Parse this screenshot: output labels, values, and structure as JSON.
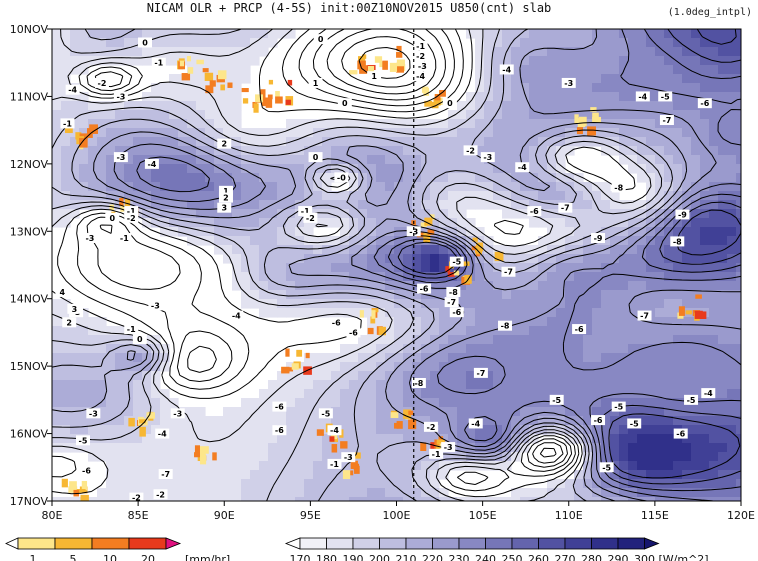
{
  "chart_data": {
    "type": "heatmap",
    "title": "NICAM  OLR + PRCP (4-5S) init:00Z10NOV2015 U850(cnt) slab",
    "note": "(1.0deg_intpl)",
    "x_ticks": [
      "80E",
      "85E",
      "90E",
      "95E",
      "100E",
      "105E",
      "110E",
      "115E",
      "120E"
    ],
    "x_range": [
      80,
      120
    ],
    "y_ticks": [
      "10NOV",
      "11NOV",
      "12NOV",
      "13NOV",
      "14NOV",
      "15NOV",
      "16NOV",
      "17NOV"
    ],
    "y_range": [
      10,
      17
    ],
    "marker_line_lon": 101,
    "prcp_colorbar": {
      "labels": [
        "1",
        "5",
        "10",
        "20"
      ],
      "unit": "[mm/hr]",
      "colors": [
        "#ffffff",
        "#fde68a",
        "#f7b733",
        "#f37d21",
        "#e83a1c",
        "#e0117f"
      ]
    },
    "olr_colorbar": {
      "labels": [
        "170",
        "180",
        "190",
        "200",
        "210",
        "220",
        "230",
        "240",
        "250",
        "260",
        "270",
        "280",
        "290",
        "300"
      ],
      "unit": "[W/m^2]",
      "colors": [
        "#ffffff",
        "#f1f1f7",
        "#e2e2f0",
        "#d0d0e8",
        "#bebee0",
        "#acacd7",
        "#9a9acd",
        "#8888c3",
        "#7676b8",
        "#6464ad",
        "#5252a2",
        "#404096",
        "#30308a",
        "#22227c",
        "#16166e"
      ]
    },
    "contour_labels": [
      {
        "text": "0",
        "lon": 85.4,
        "day": 10.2
      },
      {
        "text": "-1",
        "lon": 86.2,
        "day": 10.5
      },
      {
        "text": "-2",
        "lon": 82.9,
        "day": 10.8
      },
      {
        "text": "-4",
        "lon": 81.2,
        "day": 10.9
      },
      {
        "text": "-3",
        "lon": 84.0,
        "day": 11.0
      },
      {
        "text": "-1",
        "lon": 80.9,
        "day": 11.4
      },
      {
        "text": "-3",
        "lon": 84.0,
        "day": 11.9
      },
      {
        "text": "-4",
        "lon": 85.8,
        "day": 12.0
      },
      {
        "text": "2",
        "lon": 90.0,
        "day": 11.7
      },
      {
        "text": "1",
        "lon": 90.1,
        "day": 12.4
      },
      {
        "text": "2",
        "lon": 90.1,
        "day": 12.5
      },
      {
        "text": "3",
        "lon": 90.0,
        "day": 12.65
      },
      {
        "text": "-1",
        "lon": 84.6,
        "day": 12.7
      },
      {
        "text": "-2",
        "lon": 84.6,
        "day": 12.8
      },
      {
        "text": "0",
        "lon": 83.5,
        "day": 12.8
      },
      {
        "text": "-3",
        "lon": 82.2,
        "day": 13.1
      },
      {
        "text": "-1",
        "lon": 84.2,
        "day": 13.1
      },
      {
        "text": "0",
        "lon": 95.6,
        "day": 10.15
      },
      {
        "text": "1",
        "lon": 95.3,
        "day": 10.8
      },
      {
        "text": "0",
        "lon": 97.0,
        "day": 11.1
      },
      {
        "text": "1",
        "lon": 98.7,
        "day": 10.7
      },
      {
        "text": "0",
        "lon": 95.3,
        "day": 11.9
      },
      {
        "text": "-0",
        "lon": 96.8,
        "day": 12.2
      },
      {
        "text": "-1",
        "lon": 94.7,
        "day": 12.7
      },
      {
        "text": "-2",
        "lon": 95.0,
        "day": 12.8
      },
      {
        "text": "-3",
        "lon": 101.0,
        "day": 13.0
      },
      {
        "text": "-1",
        "lon": 101.4,
        "day": 10.25
      },
      {
        "text": "-2",
        "lon": 101.4,
        "day": 10.4
      },
      {
        "text": "-3",
        "lon": 101.5,
        "day": 10.55
      },
      {
        "text": "-4",
        "lon": 101.4,
        "day": 10.7
      },
      {
        "text": "-4",
        "lon": 106.4,
        "day": 10.6
      },
      {
        "text": "0",
        "lon": 103.1,
        "day": 11.1
      },
      {
        "text": "-2",
        "lon": 104.3,
        "day": 11.8
      },
      {
        "text": "-3",
        "lon": 105.3,
        "day": 11.9
      },
      {
        "text": "-4",
        "lon": 107.3,
        "day": 12.05
      },
      {
        "text": "-3",
        "lon": 110.0,
        "day": 10.8
      },
      {
        "text": "-4",
        "lon": 114.3,
        "day": 11.0
      },
      {
        "text": "-5",
        "lon": 115.6,
        "day": 11.0
      },
      {
        "text": "-6",
        "lon": 117.9,
        "day": 11.1
      },
      {
        "text": "-7",
        "lon": 115.7,
        "day": 11.35
      },
      {
        "text": "-8",
        "lon": 112.9,
        "day": 12.35
      },
      {
        "text": "-6",
        "lon": 108.0,
        "day": 12.7
      },
      {
        "text": "-7",
        "lon": 109.8,
        "day": 12.65
      },
      {
        "text": "-9",
        "lon": 116.6,
        "day": 12.75
      },
      {
        "text": "-9",
        "lon": 111.7,
        "day": 13.1
      },
      {
        "text": "-8",
        "lon": 116.3,
        "day": 13.15
      },
      {
        "text": "-5",
        "lon": 103.5,
        "day": 13.45
      },
      {
        "text": "-7",
        "lon": 106.5,
        "day": 13.6
      },
      {
        "text": "-6",
        "lon": 101.6,
        "day": 13.85
      },
      {
        "text": "-8",
        "lon": 103.3,
        "day": 13.9
      },
      {
        "text": "-7",
        "lon": 103.2,
        "day": 14.05
      },
      {
        "text": "-6",
        "lon": 103.5,
        "day": 14.2
      },
      {
        "text": "-8",
        "lon": 106.3,
        "day": 14.4
      },
      {
        "text": "-6",
        "lon": 110.6,
        "day": 14.45
      },
      {
        "text": "-7",
        "lon": 114.4,
        "day": 14.25
      },
      {
        "text": "-4",
        "lon": 90.7,
        "day": 14.25
      },
      {
        "text": "-6",
        "lon": 96.5,
        "day": 14.35
      },
      {
        "text": "-6",
        "lon": 97.5,
        "day": 14.5
      },
      {
        "text": "-7",
        "lon": 104.9,
        "day": 15.1
      },
      {
        "text": "-8",
        "lon": 101.3,
        "day": 15.25
      },
      {
        "text": "-5",
        "lon": 109.3,
        "day": 15.5
      },
      {
        "text": "-6",
        "lon": 111.7,
        "day": 15.8
      },
      {
        "text": "-5",
        "lon": 112.9,
        "day": 15.6
      },
      {
        "text": "-5",
        "lon": 113.8,
        "day": 15.85
      },
      {
        "text": "-5",
        "lon": 117.1,
        "day": 15.5
      },
      {
        "text": "-4",
        "lon": 118.1,
        "day": 15.4
      },
      {
        "text": "-6",
        "lon": 116.5,
        "day": 16.0
      },
      {
        "text": "-5",
        "lon": 112.2,
        "day": 16.5
      },
      {
        "text": "-4",
        "lon": 104.6,
        "day": 15.85
      },
      {
        "text": "-2",
        "lon": 102.0,
        "day": 15.9
      },
      {
        "text": "-3",
        "lon": 103.0,
        "day": 16.2
      },
      {
        "text": "-1",
        "lon": 102.3,
        "day": 16.3
      },
      {
        "text": "-6",
        "lon": 93.2,
        "day": 15.6
      },
      {
        "text": "-3",
        "lon": 87.3,
        "day": 15.7
      },
      {
        "text": "-3",
        "lon": 82.4,
        "day": 15.7
      },
      {
        "text": "-5",
        "lon": 95.9,
        "day": 15.7
      },
      {
        "text": "-4",
        "lon": 96.4,
        "day": 15.95
      },
      {
        "text": "-6",
        "lon": 93.2,
        "day": 15.95
      },
      {
        "text": "-5",
        "lon": 81.8,
        "day": 16.1
      },
      {
        "text": "-6",
        "lon": 82.0,
        "day": 16.55
      },
      {
        "text": "-4",
        "lon": 86.4,
        "day": 16.0
      },
      {
        "text": "-7",
        "lon": 86.6,
        "day": 16.6
      },
      {
        "text": "-3",
        "lon": 97.2,
        "day": 16.35
      },
      {
        "text": "-1",
        "lon": 96.4,
        "day": 16.45
      },
      {
        "text": "-2",
        "lon": 86.3,
        "day": 16.9
      },
      {
        "text": "-2",
        "lon": 84.9,
        "day": 16.95
      },
      {
        "text": "0",
        "lon": 85.1,
        "day": 14.6
      },
      {
        "text": "-1",
        "lon": 84.6,
        "day": 14.45
      },
      {
        "text": "-3",
        "lon": 86.0,
        "day": 14.1
      },
      {
        "text": "-3",
        "lon": 81.4,
        "day": 14.2
      },
      {
        "text": "3",
        "lon": 81.3,
        "day": 14.15
      },
      {
        "text": "2",
        "lon": 81.0,
        "day": 14.35
      },
      {
        "text": "4",
        "lon": 80.6,
        "day": 13.9
      }
    ]
  }
}
